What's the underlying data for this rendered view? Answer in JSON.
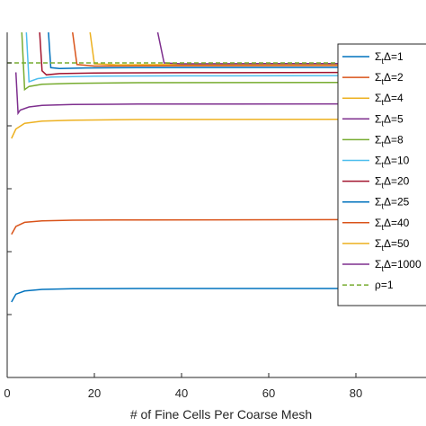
{
  "chart_data": {
    "type": "line",
    "title": "",
    "xlabel": "# of Fine Cells Per Coarse Mesh",
    "ylabel": "",
    "xlim": [
      0,
      100
    ],
    "ylim": [
      0,
      1.1
    ],
    "x_ticks": [
      0,
      20,
      40,
      60,
      80
    ],
    "x_tick_labels": [
      "0",
      "20",
      "40",
      "60",
      "80"
    ],
    "y_ticks": [
      0.2,
      0.4,
      0.6,
      0.8,
      1.0
    ],
    "grid": false,
    "legend_position": "right",
    "series": [
      {
        "name": "Σ_tΔ=1",
        "symbol": "Σ",
        "sub": "t",
        "rest": "Δ=1",
        "color": "#0072BD",
        "style": "solid",
        "points": [
          [
            1,
            0.24
          ],
          [
            2,
            0.265
          ],
          [
            4,
            0.275
          ],
          [
            8,
            0.28
          ],
          [
            15,
            0.282
          ],
          [
            30,
            0.283
          ],
          [
            100,
            0.283
          ]
        ]
      },
      {
        "name": "Σ_tΔ=2",
        "symbol": "Σ",
        "sub": "t",
        "rest": "Δ=2",
        "color": "#D95319",
        "style": "solid",
        "points": [
          [
            1,
            0.455
          ],
          [
            2,
            0.48
          ],
          [
            4,
            0.493
          ],
          [
            8,
            0.498
          ],
          [
            15,
            0.5
          ],
          [
            30,
            0.501
          ],
          [
            100,
            0.502
          ]
        ]
      },
      {
        "name": "Σ_tΔ=4",
        "symbol": "Σ",
        "sub": "t",
        "rest": "Δ=4",
        "color": "#EDB120",
        "style": "solid",
        "points": [
          [
            1,
            0.76
          ],
          [
            2,
            0.79
          ],
          [
            4,
            0.808
          ],
          [
            8,
            0.815
          ],
          [
            15,
            0.818
          ],
          [
            30,
            0.82
          ],
          [
            100,
            0.821
          ]
        ]
      },
      {
        "name": "Σ_tΔ=5",
        "symbol": "Σ",
        "sub": "t",
        "rest": "Δ=5",
        "color": "#7E2F8E",
        "style": "solid",
        "points": [
          [
            2,
            0.97
          ],
          [
            2.5,
            0.84
          ],
          [
            3,
            0.85
          ],
          [
            5,
            0.86
          ],
          [
            8,
            0.865
          ],
          [
            15,
            0.868
          ],
          [
            30,
            0.869
          ],
          [
            100,
            0.87
          ]
        ]
      },
      {
        "name": "Σ_tΔ=8",
        "symbol": "Σ",
        "sub": "t",
        "rest": "Δ=8",
        "color": "#77AC30",
        "style": "solid",
        "points": [
          [
            3,
            1.2
          ],
          [
            4,
            0.915
          ],
          [
            5,
            0.925
          ],
          [
            8,
            0.932
          ],
          [
            15,
            0.935
          ],
          [
            30,
            0.937
          ],
          [
            100,
            0.938
          ]
        ]
      },
      {
        "name": "Σ_tΔ=10",
        "symbol": "Σ",
        "sub": "t",
        "rest": "Δ=10",
        "color": "#4DBEEE",
        "style": "solid",
        "points": [
          [
            4,
            1.2
          ],
          [
            5,
            0.94
          ],
          [
            7,
            0.95
          ],
          [
            10,
            0.955
          ],
          [
            20,
            0.958
          ],
          [
            40,
            0.959
          ],
          [
            100,
            0.96
          ]
        ]
      },
      {
        "name": "Σ_tΔ=20",
        "symbol": "Σ",
        "sub": "t",
        "rest": "Δ=20",
        "color": "#A2142F",
        "style": "solid",
        "points": [
          [
            7,
            1.2
          ],
          [
            8,
            0.975
          ],
          [
            9,
            0.962
          ],
          [
            12,
            0.966
          ],
          [
            20,
            0.968
          ],
          [
            40,
            0.969
          ],
          [
            100,
            0.97
          ]
        ]
      },
      {
        "name": "Σ_tΔ=25",
        "symbol": "Σ",
        "sub": "t",
        "rest": "Δ=25",
        "color": "#0072BD",
        "style": "solid",
        "points": [
          [
            9,
            1.2
          ],
          [
            10,
            0.985
          ],
          [
            12,
            0.982
          ],
          [
            18,
            0.984
          ],
          [
            30,
            0.985
          ],
          [
            100,
            0.986
          ]
        ]
      },
      {
        "name": "Σ_tΔ=40",
        "symbol": "Σ",
        "sub": "t",
        "rest": "Δ=40",
        "color": "#D95319",
        "style": "solid",
        "points": [
          [
            14,
            1.2
          ],
          [
            16,
            0.995
          ],
          [
            20,
            0.99
          ],
          [
            30,
            0.991
          ],
          [
            100,
            0.992
          ]
        ]
      },
      {
        "name": "Σ_tΔ=50",
        "symbol": "Σ",
        "sub": "t",
        "rest": "Δ=50",
        "color": "#EDB120",
        "style": "solid",
        "points": [
          [
            18,
            1.2
          ],
          [
            20,
            0.997
          ],
          [
            25,
            0.994
          ],
          [
            40,
            0.995
          ],
          [
            100,
            0.995
          ]
        ]
      },
      {
        "name": "Σ_tΔ=1000",
        "symbol": "Σ",
        "sub": "t",
        "rest": "Δ=1000",
        "color": "#7E2F8E",
        "style": "solid",
        "points": [
          [
            33,
            1.2
          ],
          [
            36,
            1.0
          ],
          [
            40,
            0.997
          ],
          [
            60,
            0.998
          ],
          [
            100,
            0.998
          ]
        ]
      },
      {
        "name": "ρ=1",
        "symbol": "ρ",
        "sub": "",
        "rest": "=1",
        "color": "#77AC30",
        "style": "dashed",
        "points": [
          [
            0,
            1.0
          ],
          [
            100,
            1.0
          ]
        ]
      }
    ]
  }
}
